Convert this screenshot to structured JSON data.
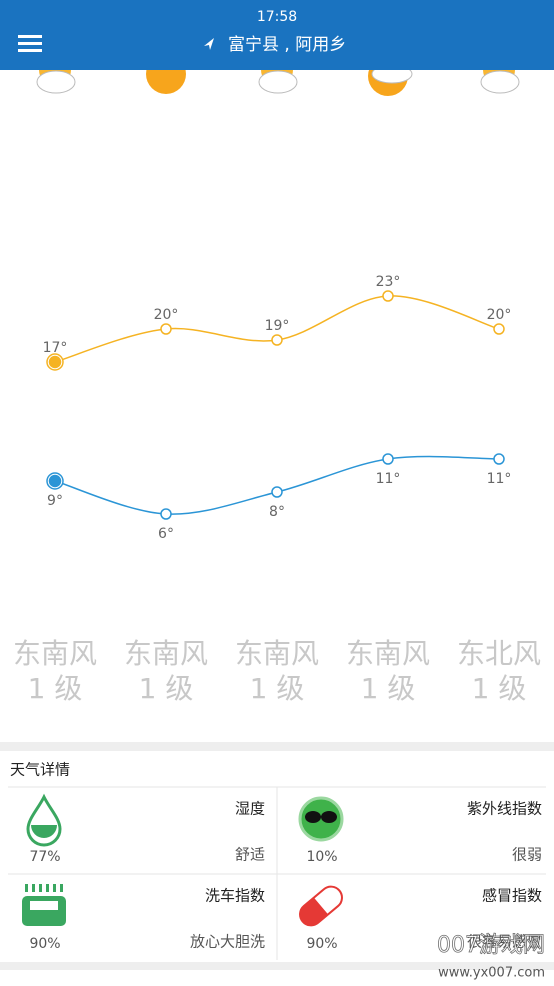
{
  "status_bar": {
    "time": "17:58"
  },
  "header": {
    "location": "富宁县 , 阿用乡"
  },
  "forecast": {
    "high": {
      "values": [
        17,
        20,
        19,
        23,
        20
      ],
      "value_labels": [
        "17°",
        "20°",
        "19°",
        "23°",
        "20°"
      ],
      "color": "#f5b323"
    },
    "low": {
      "values": [
        9,
        6,
        8,
        11,
        11
      ],
      "value_labels": [
        "9°",
        "6°",
        "8°",
        "11°",
        "11°"
      ],
      "color": "#2b95d6"
    },
    "wind": [
      {
        "direction": "东南风",
        "level": "1 级"
      },
      {
        "direction": "东南风",
        "level": "1 级"
      },
      {
        "direction": "东南风",
        "level": "1 级"
      },
      {
        "direction": "东南风",
        "level": "1 级"
      },
      {
        "direction": "东北风",
        "level": "1 级"
      }
    ]
  },
  "details": {
    "title": "天气详情",
    "items": [
      {
        "name": "湿度",
        "value": "77%",
        "description": "舒适"
      },
      {
        "name": "紫外线指数",
        "value": "10%",
        "description": "很弱"
      },
      {
        "name": "洗车指数",
        "value": "90%",
        "description": "放心大胆洗"
      },
      {
        "name": "感冒指数",
        "value": "90%",
        "description": "很容易感冒"
      }
    ]
  },
  "watermark": {
    "name": "007游戏网",
    "url": "www.yx007.com"
  }
}
